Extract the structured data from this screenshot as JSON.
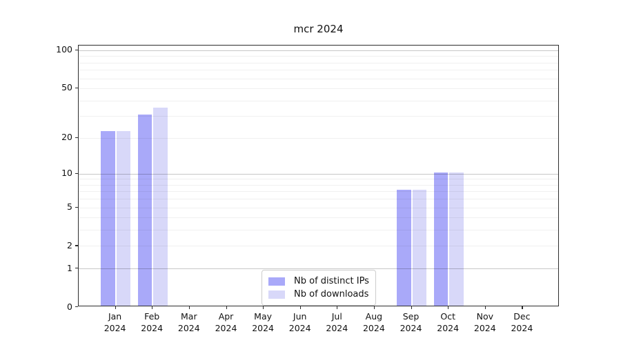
{
  "title": "mcr 2024",
  "chart_data": {
    "type": "bar",
    "title": "mcr 2024",
    "categories": [
      "Jan 2024",
      "Feb 2024",
      "Mar 2024",
      "Apr 2024",
      "May 2024",
      "Jun 2024",
      "Jul 2024",
      "Aug 2024",
      "Sep 2024",
      "Oct 2024",
      "Nov 2024",
      "Dec 2024"
    ],
    "x_tick_months": [
      "Jan",
      "Feb",
      "Mar",
      "Apr",
      "May",
      "Jun",
      "Jul",
      "Aug",
      "Sep",
      "Oct",
      "Nov",
      "Dec"
    ],
    "x_tick_year": "2024",
    "series": [
      {
        "name": "Nb of distinct IPs",
        "color": "#a9a9f9",
        "values": [
          22,
          30,
          0,
          0,
          0,
          0,
          0,
          0,
          7,
          10,
          0,
          0
        ]
      },
      {
        "name": "Nb of downloads",
        "color": "#d8d8f9",
        "values": [
          22,
          34,
          0,
          0,
          0,
          0,
          0,
          0,
          7,
          10,
          0,
          0
        ]
      }
    ],
    "xlabel": "",
    "ylabel": "",
    "yscale": "log10(1+y)",
    "yticks": [
      0,
      1,
      2,
      5,
      10,
      20,
      50,
      100
    ],
    "ylim": [
      0,
      109
    ],
    "grid": "horizontal",
    "grid_major_values": [
      1,
      10,
      100
    ],
    "grid_minor_values": [
      2,
      3,
      4,
      5,
      6,
      7,
      8,
      9,
      20,
      30,
      40,
      50,
      60,
      70,
      80,
      90
    ],
    "legend_position": "lower center"
  },
  "legend": {
    "items": [
      {
        "label": "Nb of distinct IPs",
        "color": "#a9a9f9"
      },
      {
        "label": "Nb of downloads",
        "color": "#d8d8f9"
      }
    ]
  },
  "colors": {
    "background": "#ffffff",
    "spine": "#2b2b2b",
    "grid_major": "rgba(0,0,0,0.22)",
    "grid_minor": "rgba(0,0,0,0.06)",
    "bar_distinct_ips": "#a9a9f9",
    "bar_downloads": "#d8d8f9",
    "legend_border": "#cccccc"
  }
}
